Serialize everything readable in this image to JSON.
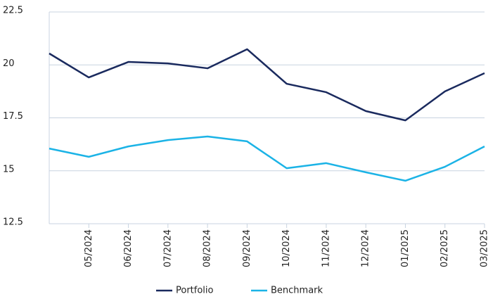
{
  "chart_data": {
    "type": "line",
    "categories": [
      null,
      "05/2024",
      "06/2024",
      "07/2024",
      "08/2024",
      "09/2024",
      "10/2024",
      "11/2024",
      "12/2024",
      "01/2025",
      "02/2025",
      "03/2025"
    ],
    "series": [
      {
        "name": "Portfolio",
        "color": "#1a2a5e",
        "values": [
          20.54,
          19.41,
          20.14,
          20.07,
          19.84,
          20.74,
          19.11,
          18.71,
          17.82,
          17.38,
          18.75,
          19.61
        ]
      },
      {
        "name": "Benchmark",
        "color": "#1bb3e6",
        "values": [
          16.05,
          15.66,
          16.15,
          16.45,
          16.62,
          16.39,
          15.12,
          15.36,
          14.93,
          14.53,
          15.19,
          16.15
        ]
      }
    ],
    "ylim": [
      12.5,
      22.5
    ],
    "yticks": [
      12.5,
      15,
      17.5,
      20,
      22.5
    ],
    "grid": true,
    "legend": "bottom"
  }
}
